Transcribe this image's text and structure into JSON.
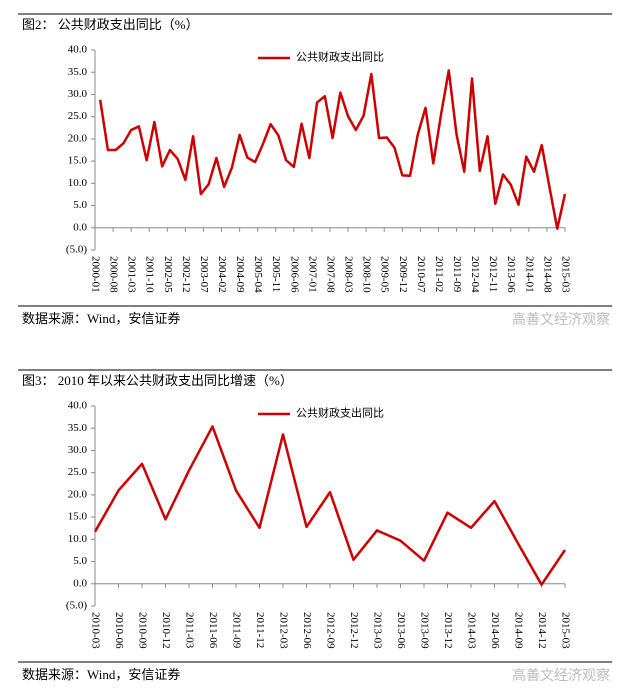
{
  "chart_data": [
    {
      "type": "line",
      "title": "图2：  公共财政支出同比（%）",
      "source": "数据来源：Wind，安信证券",
      "watermark": "高善文经济观察",
      "x": [
        "2000-03",
        "2000-06",
        "2000-09",
        "2000-12",
        "2001-03",
        "2001-06",
        "2001-09",
        "2001-12",
        "2002-03",
        "2002-06",
        "2002-09",
        "2002-12",
        "2003-03",
        "2003-06",
        "2003-09",
        "2003-12",
        "2004-03",
        "2004-06",
        "2004-09",
        "2004-12",
        "2005-03",
        "2005-06",
        "2005-09",
        "2005-12",
        "2006-03",
        "2006-06",
        "2006-09",
        "2006-12",
        "2007-03",
        "2007-06",
        "2007-09",
        "2007-12",
        "2008-03",
        "2008-06",
        "2008-09",
        "2008-12",
        "2009-03",
        "2009-06",
        "2009-09",
        "2009-12",
        "2010-03",
        "2010-06",
        "2010-09",
        "2010-12",
        "2011-03",
        "2011-06",
        "2011-09",
        "2011-12",
        "2012-03",
        "2012-06",
        "2012-09",
        "2012-12",
        "2013-03",
        "2013-06",
        "2013-09",
        "2013-12",
        "2014-03",
        "2014-06",
        "2014-09",
        "2014-12",
        "2015-03"
      ],
      "series": [
        {
          "name": "公共财政支出同比",
          "color": "#cc0000",
          "values": [
            28.8,
            17.5,
            17.5,
            19,
            22,
            22.8,
            15.2,
            23.8,
            13.8,
            17.5,
            15.5,
            10.8,
            20.6,
            7.6,
            9.8,
            15.7,
            9.2,
            13.5,
            20.9,
            15.8,
            14.8,
            18.8,
            23.3,
            20.8,
            15.2,
            13.7,
            23.4,
            15.7,
            28.2,
            29.6,
            20.2,
            30.4,
            25.1,
            22.0,
            25.2,
            34.6,
            20.2,
            20.3,
            18.0,
            11.8,
            11.7,
            21,
            27,
            14.5,
            25.5,
            35.4,
            21,
            12.6,
            33.6,
            12.8,
            20.6,
            5.4,
            12.0,
            9.7,
            5.2,
            16.0,
            12.6,
            18.6,
            9.1,
            -0.2,
            7.6
          ]
        }
      ],
      "xlim": [
        "2000-01",
        "2015-03"
      ],
      "xticks": [
        "2000-01",
        "2000-08",
        "2001-03",
        "2001-10",
        "2002-05",
        "2002-12",
        "2003-07",
        "2004-02",
        "2004-09",
        "2005-04",
        "2005-11",
        "2006-06",
        "2007-01",
        "2007-08",
        "2008-03",
        "2008-10",
        "2009-05",
        "2009-12",
        "2010-07",
        "2011-02",
        "2011-09",
        "2012-04",
        "2012-11",
        "2013-06",
        "2014-01",
        "2014-08",
        "2015-03"
      ],
      "ylim": [
        -5,
        40
      ],
      "yticks": [
        {
          "value": -5,
          "label": "(5.0)"
        },
        {
          "value": 0,
          "label": "0.0"
        },
        {
          "value": 5,
          "label": "5.0"
        },
        {
          "value": 10,
          "label": "10.0"
        },
        {
          "value": 15,
          "label": "15.0"
        },
        {
          "value": 20,
          "label": "20.0"
        },
        {
          "value": 25,
          "label": "25.0"
        },
        {
          "value": 30,
          "label": "30.0"
        },
        {
          "value": 35,
          "label": "35.0"
        },
        {
          "value": 40,
          "label": "40.0"
        }
      ],
      "legend": "top"
    },
    {
      "type": "line",
      "title": "图3：  2010 年以来公共财政支出同比增速（%）",
      "source": "数据来源：Wind，安信证券",
      "watermark": "高善文经济观察",
      "x": [
        "2010-03",
        "2010-06",
        "2010-09",
        "2010-12",
        "2011-03",
        "2011-06",
        "2011-09",
        "2011-12",
        "2012-03",
        "2012-06",
        "2012-09",
        "2012-12",
        "2013-03",
        "2013-06",
        "2013-09",
        "2013-12",
        "2014-03",
        "2014-06",
        "2014-09",
        "2014-12",
        "2015-03"
      ],
      "series": [
        {
          "name": "公共财政支出同比",
          "color": "#cc0000",
          "values": [
            11.7,
            21,
            27,
            14.5,
            25.5,
            35.4,
            21,
            12.6,
            33.6,
            12.8,
            20.6,
            5.4,
            12.0,
            9.7,
            5.2,
            16.0,
            12.6,
            18.6,
            9.1,
            -0.2,
            7.6
          ]
        }
      ],
      "xlim": [
        "2010-03",
        "2015-03"
      ],
      "xticks": [
        "2010-03",
        "2010-06",
        "2010-09",
        "2010-12",
        "2011-03",
        "2011-06",
        "2011-09",
        "2011-12",
        "2012-03",
        "2012-06",
        "2012-09",
        "2012-12",
        "2013-03",
        "2013-06",
        "2013-09",
        "2013-12",
        "2014-03",
        "2014-06",
        "2014-09",
        "2014-12",
        "2015-03"
      ],
      "ylim": [
        -5,
        40
      ],
      "yticks": [
        {
          "value": -5,
          "label": "(5.0)"
        },
        {
          "value": 0,
          "label": "0.0"
        },
        {
          "value": 5,
          "label": "5.0"
        },
        {
          "value": 10,
          "label": "10.0"
        },
        {
          "value": 15,
          "label": "15.0"
        },
        {
          "value": 20,
          "label": "20.0"
        },
        {
          "value": 25,
          "label": "25.0"
        },
        {
          "value": 30,
          "label": "30.0"
        },
        {
          "value": 35,
          "label": "35.0"
        },
        {
          "value": 40,
          "label": "40.0"
        }
      ],
      "legend": "top"
    }
  ]
}
